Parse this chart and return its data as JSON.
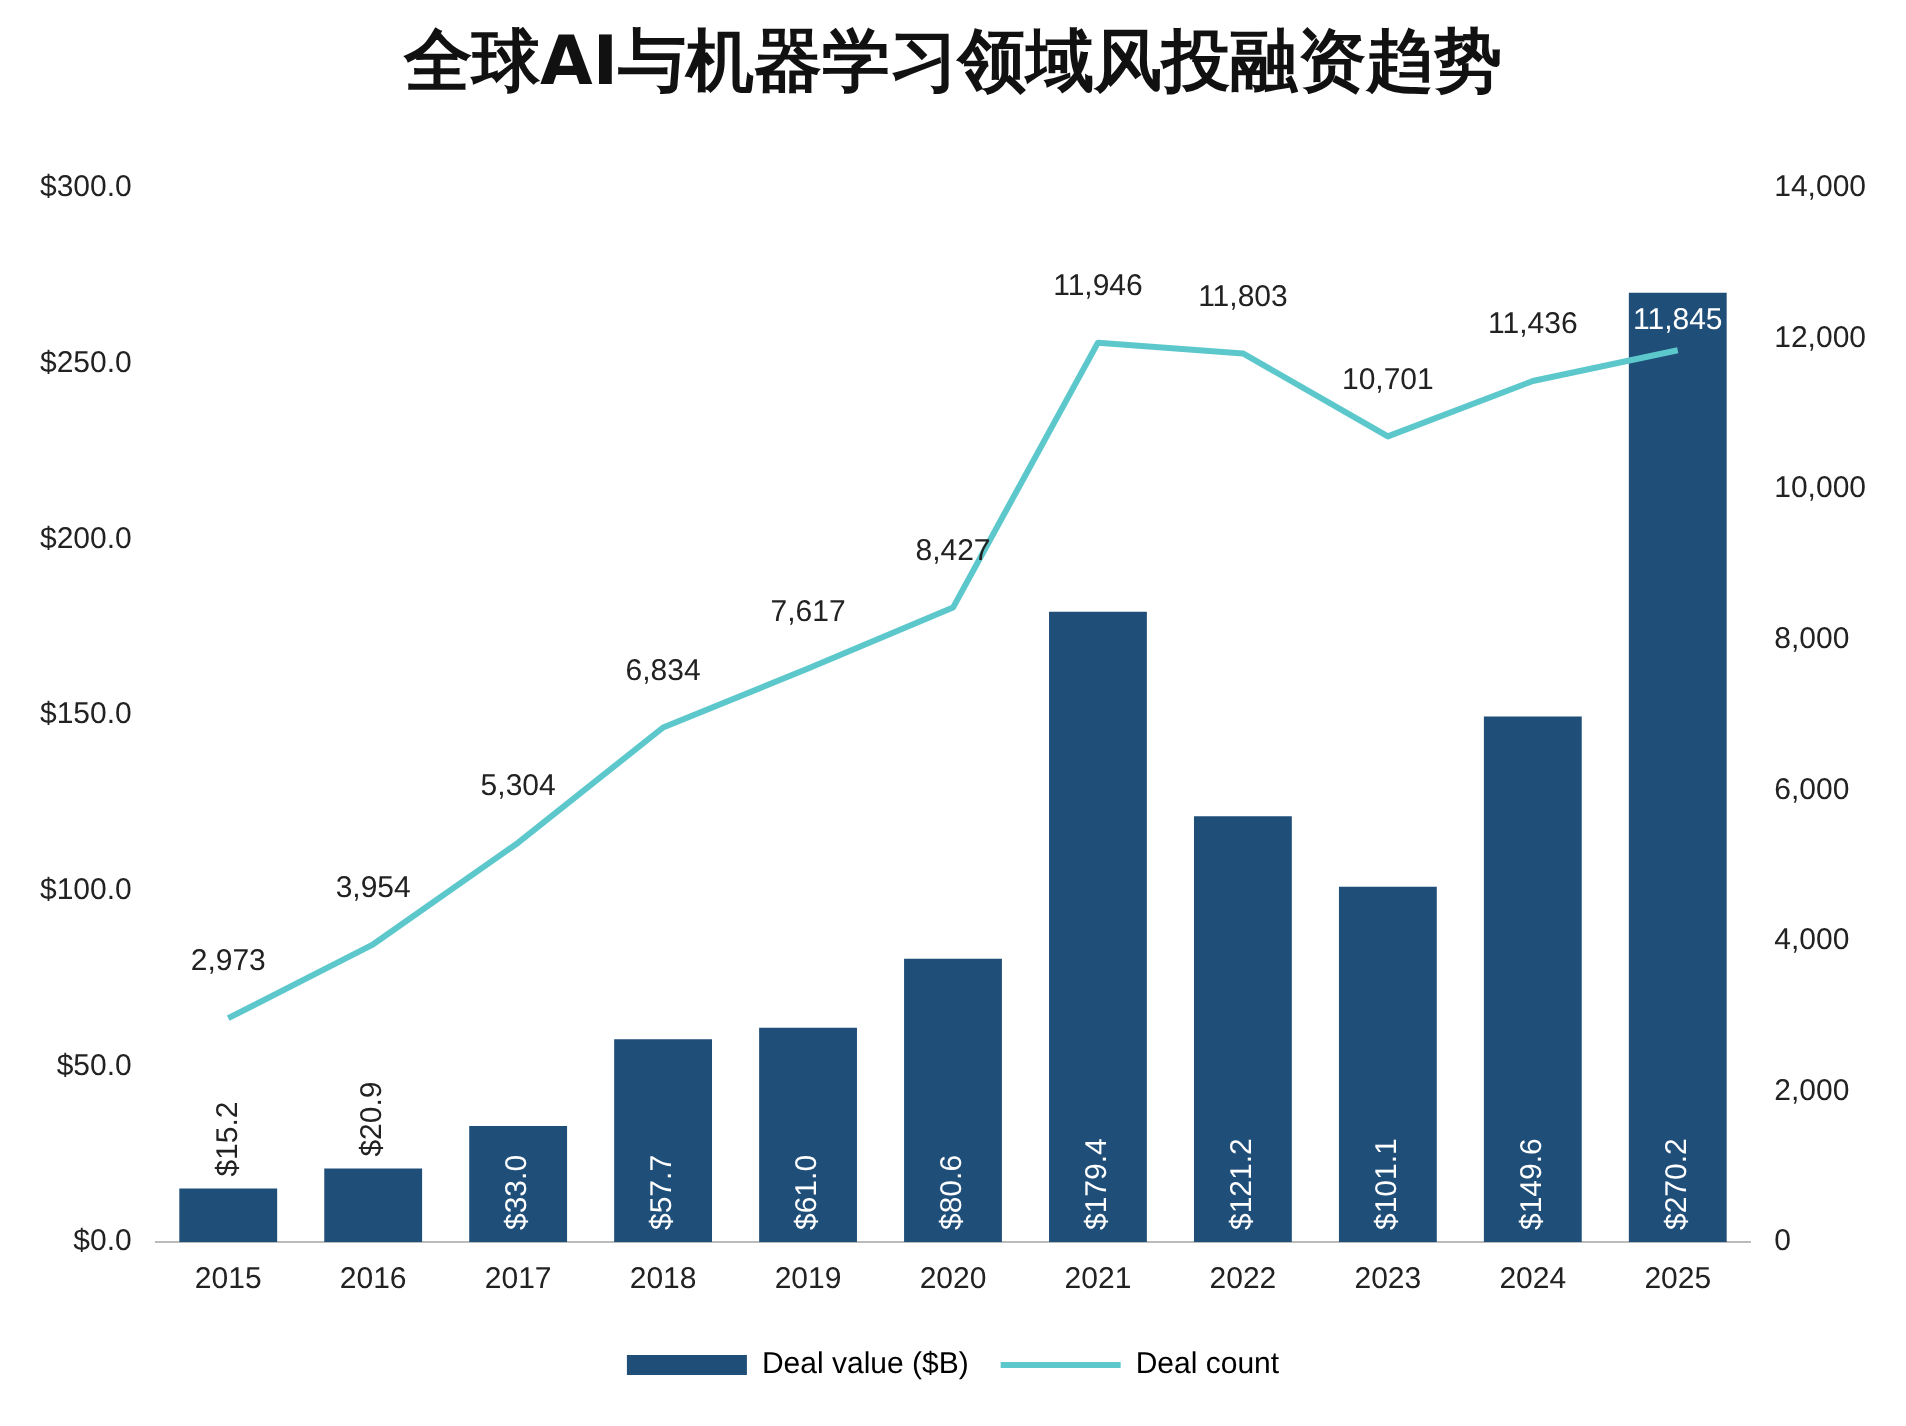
{
  "chart_data": {
    "type": "bar",
    "title": "全球AI与机器学习领域风投融资趋势",
    "categories": [
      "2015",
      "2016",
      "2017",
      "2018",
      "2019",
      "2020",
      "2021",
      "2022",
      "2023",
      "2024",
      "2025"
    ],
    "series": [
      {
        "name": "Deal value ($B)",
        "color": "#1f4e79",
        "values": [
          15.2,
          20.9,
          33.0,
          57.7,
          61.0,
          80.6,
          179.4,
          121.2,
          101.1,
          149.6,
          270.2
        ],
        "value_labels": [
          "$15.2",
          "$20.9",
          "$33.0",
          "$57.7",
          "$61.0",
          "$80.6",
          "$179.4",
          "$121.2",
          "$101.1",
          "$149.6",
          "$270.2"
        ]
      },
      {
        "name": "Deal count",
        "type": "line",
        "axis": "y2",
        "color": "#5cc8cc",
        "values": [
          2973,
          3954,
          5304,
          6834,
          7617,
          8427,
          11946,
          11803,
          10701,
          11436,
          11845
        ],
        "value_labels": [
          "2,973",
          "3,954",
          "5,304",
          "6,834",
          "7,617",
          "8,427",
          "11,946",
          "11,803",
          "10,701",
          "11,436",
          "11,845"
        ]
      }
    ],
    "ylim": [
      0,
      300
    ],
    "yticks": [
      {
        "value": 0,
        "label": "$0.0"
      },
      {
        "value": 50,
        "label": "$50.0"
      },
      {
        "value": 100,
        "label": "$100.0"
      },
      {
        "value": 150,
        "label": "$150.0"
      },
      {
        "value": 200,
        "label": "$200.0"
      },
      {
        "value": 250,
        "label": "$250.0"
      },
      {
        "value": 300,
        "label": "$300.0"
      }
    ],
    "y2lim": [
      0,
      14000
    ],
    "y2ticks": [
      0,
      {
        "value": 2000,
        "label": "2,000"
      },
      {
        "value": 4000,
        "label": "4,000"
      },
      {
        "value": 6000,
        "label": "6,000"
      },
      {
        "value": 8000,
        "label": "8,000"
      },
      {
        "value": 10000,
        "label": "10,000"
      },
      {
        "value": 12000,
        "label": "12,000"
      },
      {
        "value": 14000,
        "label": "14,000"
      }
    ],
    "grid": false,
    "legend": "bottom",
    "marker": "none",
    "line_style": "solid"
  }
}
